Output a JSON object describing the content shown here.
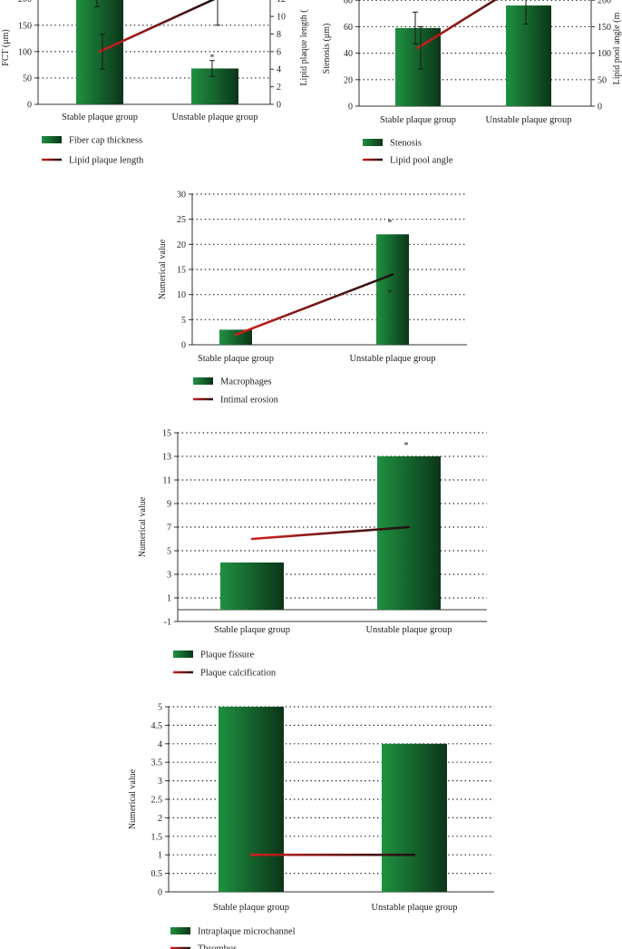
{
  "colors": {
    "bar_light": "#1f9140",
    "bar_dark": "#0b3519",
    "line_red": "#d31f1f",
    "line_dark": "#1a1111"
  },
  "chart_data": [
    {
      "type": "bar",
      "categories": [
        "Stable plaque group",
        "Unstable plaque group"
      ],
      "ylabel": "FCT (μm)",
      "y2label": "Lipid plaque length (",
      "ylim": [
        0,
        215
      ],
      "y2lim": [
        0,
        12.9
      ],
      "yticks": [
        0,
        50,
        100,
        150,
        200
      ],
      "y2ticks": [
        0,
        2,
        4,
        6,
        8,
        10,
        12
      ],
      "grid": true,
      "legend_position": "bottom-left",
      "series": [
        {
          "name": "Fiber cap thickness",
          "type": "bar",
          "values": [
            205,
            68
          ],
          "error": [
            20,
            15
          ],
          "axis": "left"
        },
        {
          "name": "Lipid plaque length",
          "type": "line",
          "values": [
            6,
            12
          ],
          "error": [
            2,
            3
          ],
          "axis": "right"
        }
      ],
      "annotations": [
        {
          "text": "*",
          "category": "Unstable plaque group"
        }
      ]
    },
    {
      "type": "bar",
      "categories": [
        "Stable plaque group",
        "Unstable plaque group"
      ],
      "ylabel": "Stenosis (μm)",
      "y2label": "Lipid pool angle (m",
      "ylim": [
        0,
        87
      ],
      "y2lim": [
        0,
        217.5
      ],
      "yticks": [
        0,
        20,
        40,
        60,
        80
      ],
      "y2ticks": [
        0,
        50,
        100,
        150,
        200
      ],
      "grid": true,
      "legend_position": "bottom-left",
      "series": [
        {
          "name": "Stenosis",
          "type": "bar",
          "values": [
            59,
            76
          ],
          "error": [
            12,
            14
          ],
          "axis": "left"
        },
        {
          "name": "Lipid pool angle",
          "type": "line",
          "values": [
            110,
            240
          ],
          "error": [
            40,
            0
          ],
          "axis": "right"
        }
      ]
    },
    {
      "type": "bar",
      "categories": [
        "Stable plaque group",
        "Unstable plaque group"
      ],
      "ylabel": "Numerical value",
      "ylim": [
        0,
        30
      ],
      "yticks": [
        0,
        5,
        10,
        15,
        20,
        25,
        30
      ],
      "grid": true,
      "legend_position": "bottom-left",
      "series": [
        {
          "name": "Macrophages",
          "type": "bar",
          "values": [
            3,
            22
          ]
        },
        {
          "name": "Intimal erosion",
          "type": "line",
          "values": [
            2,
            14
          ]
        }
      ],
      "annotations": [
        {
          "text": "*",
          "category": "Unstable plaque group",
          "y": 24.5
        },
        {
          "text": "*",
          "category": "Unstable plaque group",
          "y": 10.5
        }
      ]
    },
    {
      "type": "bar",
      "categories": [
        "Stable plaque group",
        "Unstable plaque group"
      ],
      "ylabel": "Numerical value",
      "ylim": [
        -1,
        15
      ],
      "yticks": [
        -1,
        1,
        3,
        5,
        7,
        9,
        11,
        13,
        15
      ],
      "grid": true,
      "legend_position": "bottom-left",
      "series": [
        {
          "name": "Plaque fissure",
          "type": "bar",
          "values": [
            4,
            13
          ]
        },
        {
          "name": "Plaque calcification",
          "type": "line",
          "values": [
            6,
            7
          ]
        }
      ],
      "annotations": [
        {
          "text": "*",
          "category": "Unstable plaque group",
          "y": 14
        }
      ]
    },
    {
      "type": "bar",
      "categories": [
        "Stable plaque group",
        "Unstable plaque group"
      ],
      "ylabel": "Numerical value",
      "ylim": [
        0,
        5
      ],
      "yticks": [
        0,
        0.5,
        1,
        1.5,
        2,
        2.5,
        3,
        3.5,
        4,
        4.5,
        5
      ],
      "grid": true,
      "legend_position": "bottom-left",
      "series": [
        {
          "name": "Intraplaque microchannel",
          "type": "bar",
          "values": [
            5,
            4
          ]
        },
        {
          "name": "Thrombus",
          "type": "line",
          "values": [
            1,
            1
          ]
        }
      ]
    }
  ]
}
